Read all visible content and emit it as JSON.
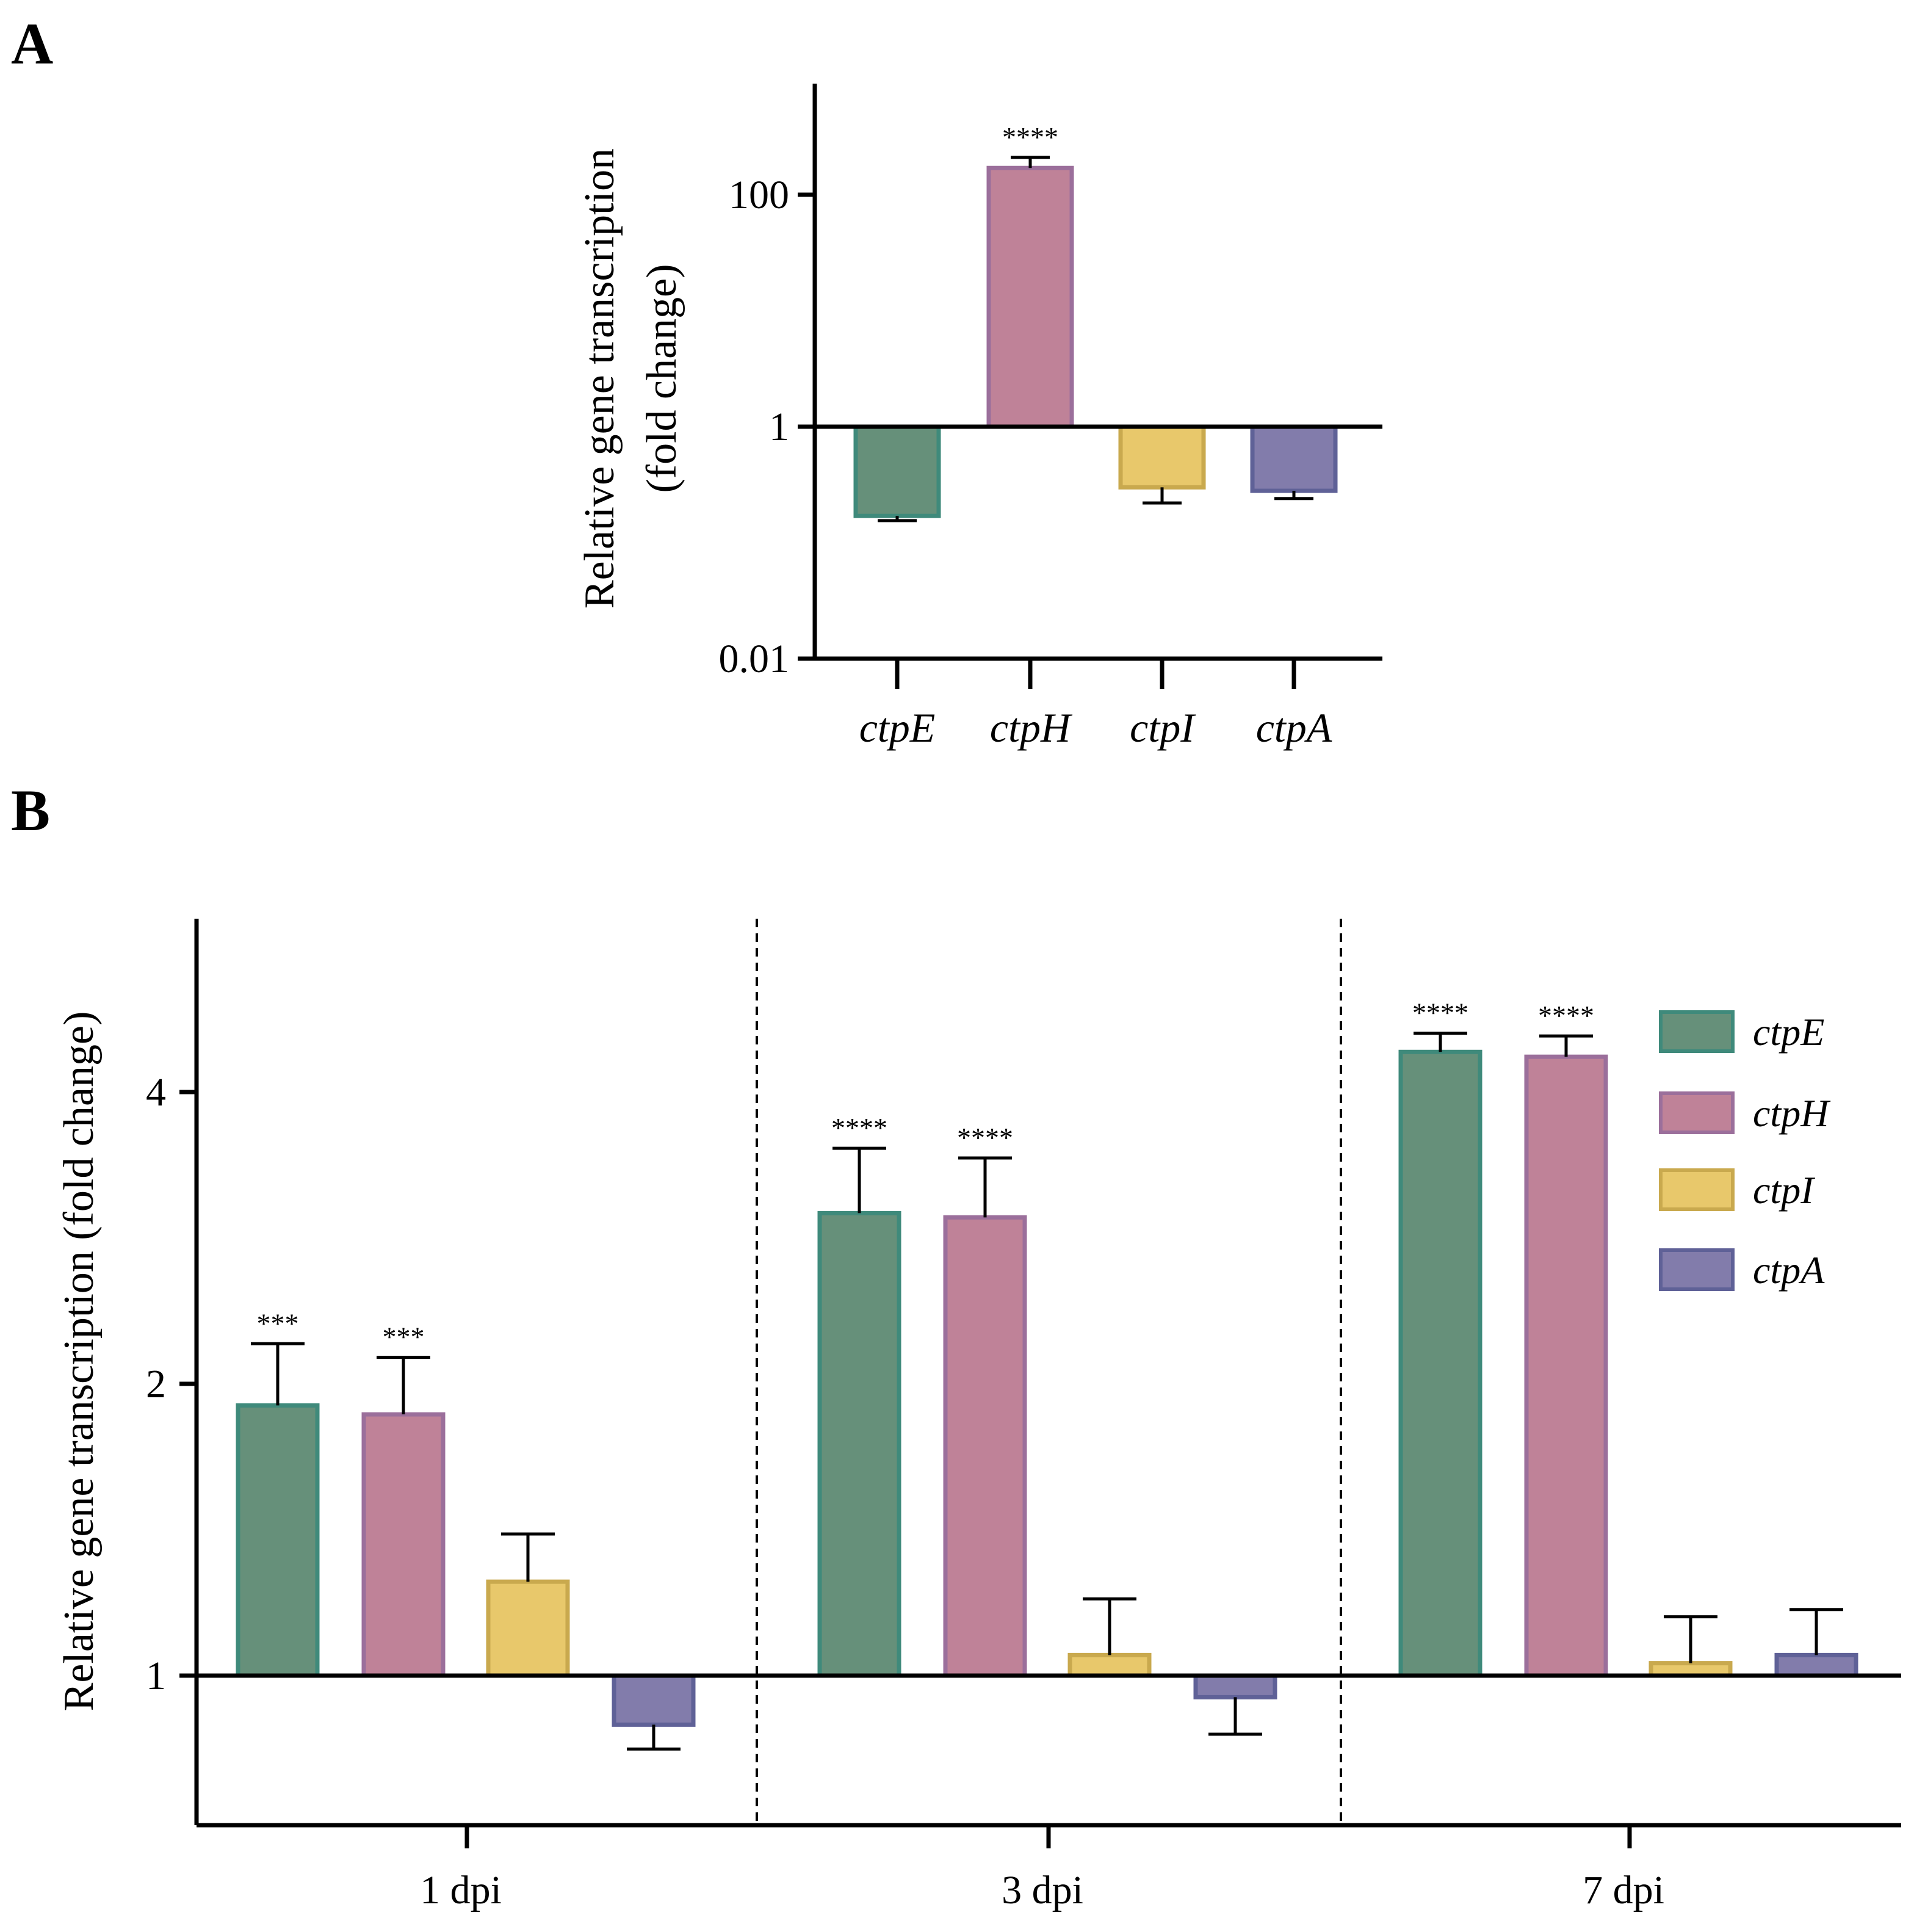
{
  "colors": {
    "ctpE": {
      "fill": "#66907a",
      "stroke": "#3f8a7b"
    },
    "ctpH": {
      "fill": "#bf8298",
      "stroke": "#9b6f9b"
    },
    "ctpI": {
      "fill": "#e8c86b",
      "stroke": "#c9a94e"
    },
    "ctpA": {
      "fill": "#827cab",
      "stroke": "#5f6197"
    }
  },
  "chart_data": [
    {
      "panel": "A",
      "type": "bar",
      "scale": "log10",
      "baseline": 1,
      "ylabel_line1": "Relative gene transcription",
      "ylabel_line2": "(fold change)",
      "ylim": [
        0.01,
        1000
      ],
      "yticks": [
        {
          "value": 0.01,
          "label": "0.01"
        },
        {
          "value": 1,
          "label": "1"
        },
        {
          "value": 100,
          "label": "100"
        }
      ],
      "categories": [
        "ctpE",
        "ctpH",
        "ctpI",
        "ctpA"
      ],
      "values": [
        0.17,
        170,
        0.3,
        0.28
      ],
      "errors": [
        0.155,
        210,
        0.22,
        0.24
      ],
      "significance": [
        "",
        "****",
        "",
        ""
      ]
    },
    {
      "panel": "B",
      "type": "bar",
      "scale": "log2",
      "baseline": 1,
      "ylabel": "Relative gene transcription (fold change)",
      "ylim": [
        0.7,
        5.7
      ],
      "yticks": [
        {
          "value": 1,
          "label": "1"
        },
        {
          "value": 2,
          "label": "2"
        },
        {
          "value": 4,
          "label": "4"
        }
      ],
      "groups": [
        "1 dpi",
        "3 dpi",
        "7 dpi"
      ],
      "series": [
        {
          "name": "ctpE",
          "values": [
            1.9,
            3.0,
            4.4
          ],
          "errors": [
            2.2,
            3.5,
            4.6
          ],
          "significance": [
            "***",
            "****",
            "****"
          ]
        },
        {
          "name": "ctpH",
          "values": [
            1.86,
            2.97,
            4.35
          ],
          "errors": [
            2.13,
            3.42,
            4.57
          ],
          "significance": [
            "***",
            "****",
            "****"
          ]
        },
        {
          "name": "ctpI",
          "values": [
            1.25,
            1.05,
            1.03
          ],
          "errors": [
            1.4,
            1.2,
            1.15
          ]
        },
        {
          "name": "ctpA",
          "values": [
            0.89,
            0.95,
            1.05
          ],
          "errors": [
            0.84,
            0.87,
            1.17
          ]
        }
      ],
      "legend": [
        "ctpE",
        "ctpH",
        "ctpI",
        "ctpA"
      ],
      "legend_position": "top-right"
    }
  ],
  "panels": {
    "a_label": "A",
    "b_label": "B"
  }
}
